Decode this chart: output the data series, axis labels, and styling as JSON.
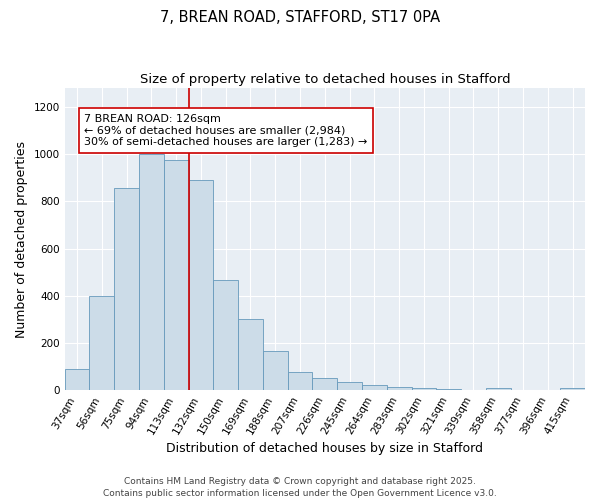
{
  "title": "7, BREAN ROAD, STAFFORD, ST17 0PA",
  "subtitle": "Size of property relative to detached houses in Stafford",
  "xlabel": "Distribution of detached houses by size in Stafford",
  "ylabel": "Number of detached properties",
  "categories": [
    "37sqm",
    "56sqm",
    "75sqm",
    "94sqm",
    "113sqm",
    "132sqm",
    "150sqm",
    "169sqm",
    "188sqm",
    "207sqm",
    "226sqm",
    "245sqm",
    "264sqm",
    "283sqm",
    "302sqm",
    "321sqm",
    "339sqm",
    "358sqm",
    "377sqm",
    "396sqm",
    "415sqm"
  ],
  "values": [
    90,
    400,
    855,
    1000,
    975,
    890,
    465,
    300,
    165,
    75,
    50,
    35,
    22,
    12,
    8,
    5,
    2,
    7,
    2,
    2,
    8
  ],
  "bar_color": "#ccdce8",
  "bar_edge_color": "#6699bb",
  "vline_color": "#cc0000",
  "vline_pos": 4.5,
  "annotation_text": "7 BREAN ROAD: 126sqm\n← 69% of detached houses are smaller (2,984)\n30% of semi-detached houses are larger (1,283) →",
  "annotation_box_facecolor": "#ffffff",
  "annotation_box_edgecolor": "#cc0000",
  "ylim": [
    0,
    1280
  ],
  "yticks": [
    0,
    200,
    400,
    600,
    800,
    1000,
    1200
  ],
  "plot_bg_color": "#e8eef4",
  "footer_text": "Contains HM Land Registry data © Crown copyright and database right 2025.\nContains public sector information licensed under the Open Government Licence v3.0.",
  "title_fontsize": 10.5,
  "subtitle_fontsize": 9.5,
  "tick_fontsize": 7.5,
  "xlabel_fontsize": 9,
  "ylabel_fontsize": 9,
  "footer_fontsize": 6.5,
  "annotation_fontsize": 8
}
